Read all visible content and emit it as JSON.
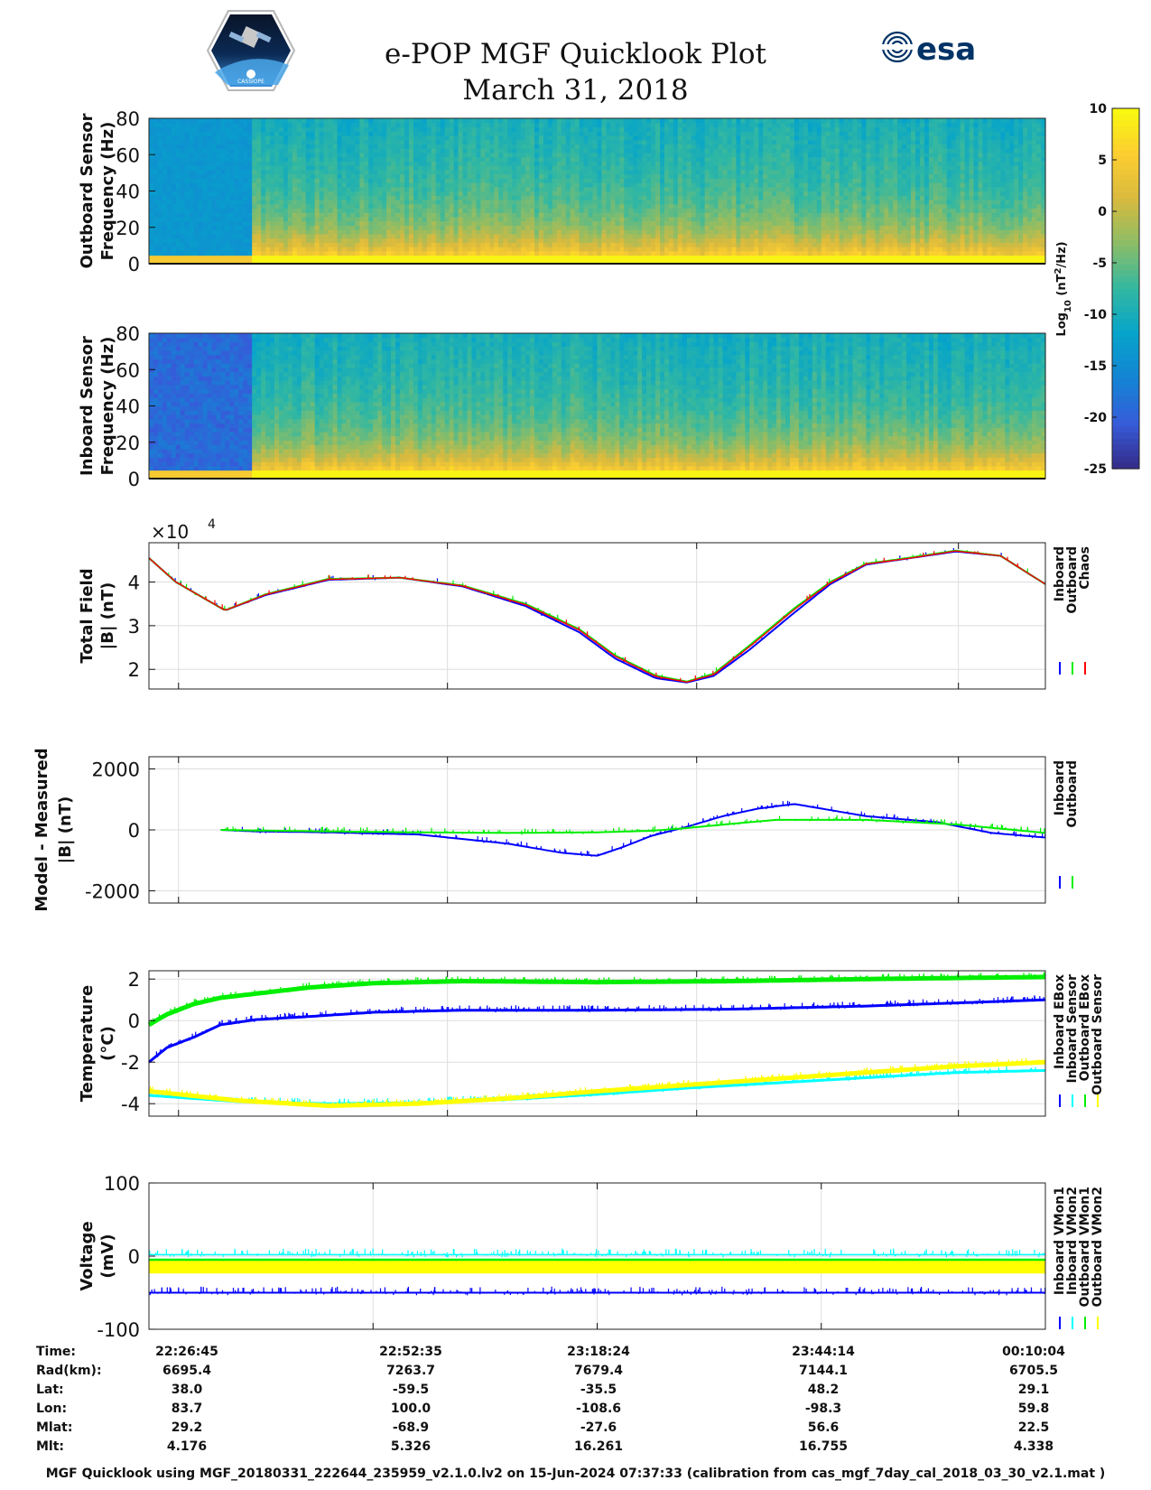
{
  "header": {
    "title": "e-POP MGF Quicklook Plot",
    "date": "March 31, 2018",
    "esa_logo_text": "esa",
    "cassiope_logo_text": "CASSIOPE"
  },
  "chart_data": [
    {
      "type": "heatmap",
      "id": "outboard-spectrogram",
      "ylabel": [
        "Outboard Sensor",
        "Frequency (Hz)"
      ],
      "ylim": [
        0,
        80
      ],
      "yticks": [
        0,
        20,
        40,
        60,
        80
      ],
      "description_values": "log10 power spectral density"
    },
    {
      "type": "heatmap",
      "id": "inboard-spectrogram",
      "ylabel": [
        "Inboard Sensor",
        "Frequency (Hz)"
      ],
      "ylim": [
        0,
        80
      ],
      "yticks": [
        0,
        20,
        40,
        60,
        80
      ]
    },
    {
      "type": "colorbar",
      "id": "spectrogram-colorbar",
      "label": "Log10 (nT^2/Hz)",
      "label_parts": [
        "Log",
        "10",
        " (nT",
        "2",
        "/Hz)"
      ],
      "range": [
        -25,
        10
      ],
      "ticks": [
        10,
        5,
        0,
        -5,
        -10,
        -15,
        -20,
        -25
      ]
    },
    {
      "type": "line",
      "id": "total-field",
      "ylabel": [
        "Total Field",
        "|B| (nT)"
      ],
      "exponent_label": "×10",
      "exponent_power": "4",
      "ylim": [
        1.55,
        4.9
      ],
      "yticks": [
        2,
        3,
        4
      ],
      "xlim": [
        0,
        1
      ],
      "legend": [
        "Inboard",
        "Outboard",
        "Chaos"
      ],
      "series": [
        {
          "name": "Inboard",
          "color": "#0000ff",
          "x": [
            0,
            0.03,
            0.085,
            0.13,
            0.2,
            0.28,
            0.35,
            0.42,
            0.48,
            0.52,
            0.565,
            0.6,
            0.63,
            0.67,
            0.72,
            0.76,
            0.8,
            0.85,
            0.9,
            0.95,
            1.0
          ],
          "y": [
            4.55,
            4.0,
            3.35,
            3.7,
            4.05,
            4.1,
            3.9,
            3.45,
            2.85,
            2.25,
            1.8,
            1.7,
            1.85,
            2.45,
            3.3,
            3.95,
            4.4,
            4.55,
            4.7,
            4.6,
            3.95
          ]
        },
        {
          "name": "Outboard",
          "color": "#00ee00",
          "x": [
            0,
            0.03,
            0.085,
            0.13,
            0.2,
            0.28,
            0.35,
            0.42,
            0.48,
            0.52,
            0.565,
            0.6,
            0.63,
            0.67,
            0.72,
            0.76,
            0.8,
            0.85,
            0.9,
            0.95,
            1.0
          ],
          "y": [
            4.55,
            4.0,
            3.35,
            3.72,
            4.07,
            4.1,
            3.92,
            3.5,
            2.92,
            2.32,
            1.86,
            1.72,
            1.9,
            2.55,
            3.4,
            4.0,
            4.42,
            4.56,
            4.72,
            4.6,
            3.95
          ]
        },
        {
          "name": "Chaos",
          "color": "#ff0000",
          "x": [
            0,
            0.03,
            0.085,
            0.13,
            0.2,
            0.28,
            0.35,
            0.42,
            0.48,
            0.52,
            0.565,
            0.6,
            0.63,
            0.67,
            0.72,
            0.76,
            0.8,
            0.85,
            0.9,
            0.95,
            1.0
          ],
          "y": [
            4.55,
            4.0,
            3.35,
            3.71,
            4.06,
            4.1,
            3.91,
            3.48,
            2.9,
            2.3,
            1.84,
            1.71,
            1.88,
            2.52,
            3.37,
            3.98,
            4.41,
            4.55,
            4.71,
            4.6,
            3.95
          ]
        }
      ]
    },
    {
      "type": "line",
      "id": "model-minus-measured",
      "ylabel": [
        "Model - Measured",
        "|B| (nT)"
      ],
      "ylim": [
        -2400,
        2400
      ],
      "yticks": [
        -2000,
        0,
        2000
      ],
      "xlim": [
        0,
        1
      ],
      "legend": [
        "Inboard",
        "Outboard"
      ],
      "series": [
        {
          "name": "Inboard",
          "color": "#0000ff",
          "x": [
            0.08,
            0.12,
            0.2,
            0.3,
            0.4,
            0.46,
            0.5,
            0.53,
            0.56,
            0.6,
            0.64,
            0.68,
            0.72,
            0.8,
            0.88,
            0.94,
            1.0
          ],
          "y": [
            0,
            -50,
            -80,
            -150,
            -450,
            -750,
            -850,
            -550,
            -200,
            100,
            450,
            700,
            850,
            450,
            250,
            -100,
            -250
          ]
        },
        {
          "name": "Outboard",
          "color": "#00ee00",
          "x": [
            0.08,
            0.12,
            0.2,
            0.3,
            0.4,
            0.5,
            0.56,
            0.6,
            0.65,
            0.7,
            0.8,
            0.9,
            1.0
          ],
          "y": [
            0,
            -20,
            -50,
            -80,
            -100,
            -80,
            -30,
            60,
            200,
            330,
            330,
            180,
            -100
          ]
        }
      ]
    },
    {
      "type": "line",
      "id": "temperature",
      "ylabel": [
        "Temperature",
        "(°C)"
      ],
      "ylim": [
        -4.6,
        2.4
      ],
      "yticks": [
        -4,
        -2,
        0,
        2
      ],
      "xlim": [
        0,
        1
      ],
      "legend": [
        "Inboard EBox",
        "Inboard Sensor",
        "Outboard EBox",
        "Outboard Sensor"
      ],
      "series": [
        {
          "name": "Inboard EBox",
          "color": "#0000ff",
          "x": [
            0,
            0.02,
            0.05,
            0.08,
            0.12,
            0.18,
            0.25,
            0.35,
            0.5,
            0.65,
            0.8,
            0.9,
            1.0
          ],
          "y": [
            -2.0,
            -1.3,
            -0.8,
            -0.2,
            0.05,
            0.2,
            0.4,
            0.5,
            0.5,
            0.55,
            0.7,
            0.85,
            1.0
          ]
        },
        {
          "name": "Inboard Sensor",
          "color": "#00ffff",
          "x": [
            0,
            0.1,
            0.2,
            0.3,
            0.4,
            0.5,
            0.6,
            0.7,
            0.8,
            0.9,
            1.0
          ],
          "y": [
            -3.6,
            -3.9,
            -4.0,
            -3.95,
            -3.8,
            -3.55,
            -3.25,
            -3.0,
            -2.75,
            -2.5,
            -2.4
          ]
        },
        {
          "name": "Outboard EBox",
          "color": "#00ee00",
          "x": [
            0,
            0.02,
            0.05,
            0.08,
            0.12,
            0.18,
            0.25,
            0.35,
            0.5,
            0.65,
            0.8,
            0.9,
            1.0
          ],
          "y": [
            -0.2,
            0.3,
            0.8,
            1.1,
            1.3,
            1.6,
            1.8,
            1.9,
            1.85,
            1.9,
            2.0,
            2.05,
            2.1
          ]
        },
        {
          "name": "Outboard Sensor",
          "color": "#ffff00",
          "x": [
            0,
            0.1,
            0.2,
            0.3,
            0.4,
            0.5,
            0.6,
            0.7,
            0.8,
            0.9,
            1.0
          ],
          "y": [
            -3.4,
            -3.85,
            -4.1,
            -4.0,
            -3.75,
            -3.4,
            -3.1,
            -2.8,
            -2.5,
            -2.2,
            -2.0
          ]
        }
      ]
    },
    {
      "type": "line",
      "id": "voltage",
      "ylabel": [
        "Voltage",
        "(mV)"
      ],
      "ylim": [
        -100,
        100
      ],
      "yticks": [
        -100,
        0,
        100
      ],
      "xlim": [
        0,
        1
      ],
      "legend": [
        "Inboard VMon1",
        "Inboard VMon2",
        "Outboard VMon1",
        "Outboard VMon2"
      ],
      "series": [
        {
          "name": "Inboard VMon1",
          "color": "#0000ff",
          "x": [
            0,
            1
          ],
          "y": [
            -50,
            -50
          ]
        },
        {
          "name": "Inboard VMon2",
          "color": "#00ffff",
          "x": [
            0,
            1
          ],
          "y": [
            2,
            2
          ]
        },
        {
          "name": "Outboard VMon1",
          "color": "#00ee00",
          "x": [
            0,
            1
          ],
          "y": [
            -12,
            -12
          ]
        },
        {
          "name": "Outboard VMon2",
          "color": "#ffff00",
          "x": [
            0,
            1
          ],
          "y": [
            -15,
            -15
          ]
        }
      ]
    }
  ],
  "ephemeris": {
    "row_labels": [
      "Time:",
      "Rad(km):",
      "Lat:",
      "Lon:",
      "Mlat:",
      "Mlt:"
    ],
    "columns": [
      [
        "22:26:45",
        "6695.4",
        "38.0",
        "83.7",
        "29.2",
        "4.176"
      ],
      [
        "22:52:35",
        "7263.7",
        "-59.5",
        "100.0",
        "-68.9",
        "5.326"
      ],
      [
        "23:18:24",
        "7679.4",
        "-35.5",
        "-108.6",
        "-27.6",
        "16.261"
      ],
      [
        "23:44:14",
        "7144.1",
        "48.2",
        "-98.3",
        "56.6",
        "16.755"
      ],
      [
        "00:10:04",
        "6705.5",
        "29.1",
        "59.8",
        "22.5",
        "4.338"
      ]
    ]
  },
  "footer": "MGF Quicklook using MGF_20180331_222644_235959_v2.1.0.lv2 on 15-Jun-2024 07:37:33 (calibration from cas_mgf_7day_cal_2018_03_30_v2.1.mat )",
  "colors": {
    "inboard": "#0000ff",
    "outboard": "#00ee00",
    "chaos": "#ff0000",
    "inboard_sensor": "#00ffff",
    "outboard_sensor": "#ffff00",
    "grid": "#dddddd"
  }
}
